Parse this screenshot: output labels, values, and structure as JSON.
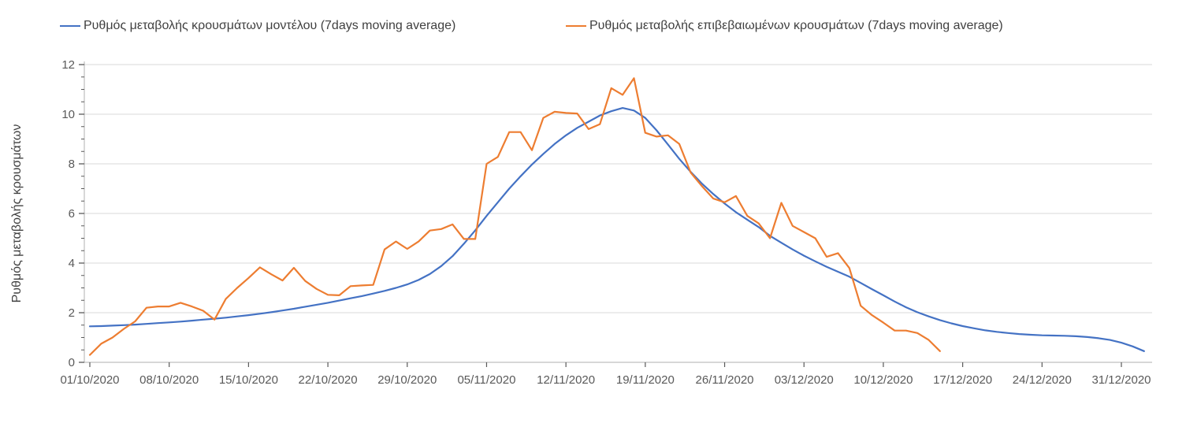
{
  "colors": {
    "series_model": "#4472C4",
    "series_confirmed": "#ED7D31",
    "gridline": "#D9D9D9",
    "axis_line": "#BFBFBF",
    "tick_mark": "#595959",
    "tick_text": "#595959",
    "label_text": "#404040",
    "background": "#FFFFFF"
  },
  "chart_data": {
    "type": "line",
    "title": "",
    "xlabel": "",
    "ylabel": "Ρυθμός μεταβολής κρουσμάτων",
    "ylim": [
      0,
      12
    ],
    "ytick_step": 2,
    "y_minor_tick_step": 0.5,
    "grid": "horizontal",
    "legend_position": "top",
    "x_is_daily_from": "01/10/2020",
    "x_tick_labels": [
      "01/10/2020",
      "08/10/2020",
      "15/10/2020",
      "22/10/2020",
      "29/10/2020",
      "05/11/2020",
      "12/11/2020",
      "19/11/2020",
      "26/11/2020",
      "03/12/2020",
      "10/12/2020",
      "17/12/2020",
      "24/12/2020",
      "31/12/2020"
    ],
    "series": [
      {
        "name": "Ρυθμός μεταβολής κρουσμάτων μοντέλου (7days moving average)",
        "color": "#4472C4",
        "values": [
          1.45,
          1.46,
          1.48,
          1.5,
          1.52,
          1.55,
          1.58,
          1.61,
          1.64,
          1.68,
          1.72,
          1.76,
          1.8,
          1.85,
          1.9,
          1.96,
          2.02,
          2.09,
          2.16,
          2.24,
          2.32,
          2.4,
          2.49,
          2.58,
          2.67,
          2.77,
          2.88,
          3.0,
          3.14,
          3.32,
          3.56,
          3.88,
          4.28,
          4.78,
          5.32,
          5.9,
          6.45,
          7.0,
          7.5,
          7.97,
          8.4,
          8.8,
          9.15,
          9.45,
          9.7,
          9.95,
          10.12,
          10.25,
          10.15,
          9.85,
          9.35,
          8.78,
          8.2,
          7.68,
          7.2,
          6.78,
          6.4,
          6.05,
          5.75,
          5.45,
          5.1,
          4.82,
          4.55,
          4.3,
          4.07,
          3.85,
          3.65,
          3.45,
          3.2,
          2.95,
          2.7,
          2.45,
          2.22,
          2.02,
          1.85,
          1.7,
          1.57,
          1.46,
          1.37,
          1.29,
          1.23,
          1.18,
          1.14,
          1.11,
          1.09,
          1.08,
          1.07,
          1.05,
          1.02,
          0.97,
          0.9,
          0.79,
          0.64,
          0.45
        ]
      },
      {
        "name": "Ρυθμός μεταβολής επιβεβαιωμένων κρουσμάτων (7days moving average)",
        "color": "#ED7D31",
        "values": [
          0.3,
          0.75,
          1.0,
          1.35,
          1.65,
          2.2,
          2.25,
          2.25,
          2.4,
          2.25,
          2.08,
          1.72,
          2.56,
          3.0,
          3.4,
          3.83,
          3.55,
          3.3,
          3.81,
          3.28,
          2.96,
          2.72,
          2.7,
          3.07,
          3.1,
          3.12,
          4.55,
          4.87,
          4.57,
          4.87,
          5.31,
          5.37,
          5.56,
          4.97,
          4.97,
          8.0,
          8.28,
          9.28,
          9.28,
          8.55,
          9.85,
          10.1,
          10.05,
          10.03,
          9.4,
          9.6,
          11.05,
          10.78,
          11.45,
          9.25,
          9.1,
          9.15,
          8.8,
          7.65,
          7.1,
          6.6,
          6.45,
          6.7,
          5.9,
          5.6,
          5.0,
          6.43,
          5.5,
          5.25,
          5.0,
          4.25,
          4.4,
          3.8,
          2.28,
          1.9,
          1.6,
          1.28,
          1.28,
          1.18,
          0.9,
          0.45
        ]
      }
    ]
  },
  "legend": {
    "items": [
      {
        "label": "Ρυθμός μεταβολής κρουσμάτων μοντέλου (7days moving average)"
      },
      {
        "label": "Ρυθμός μεταβολής επιβεβαιωμένων κρουσμάτων (7days moving average)"
      }
    ]
  }
}
